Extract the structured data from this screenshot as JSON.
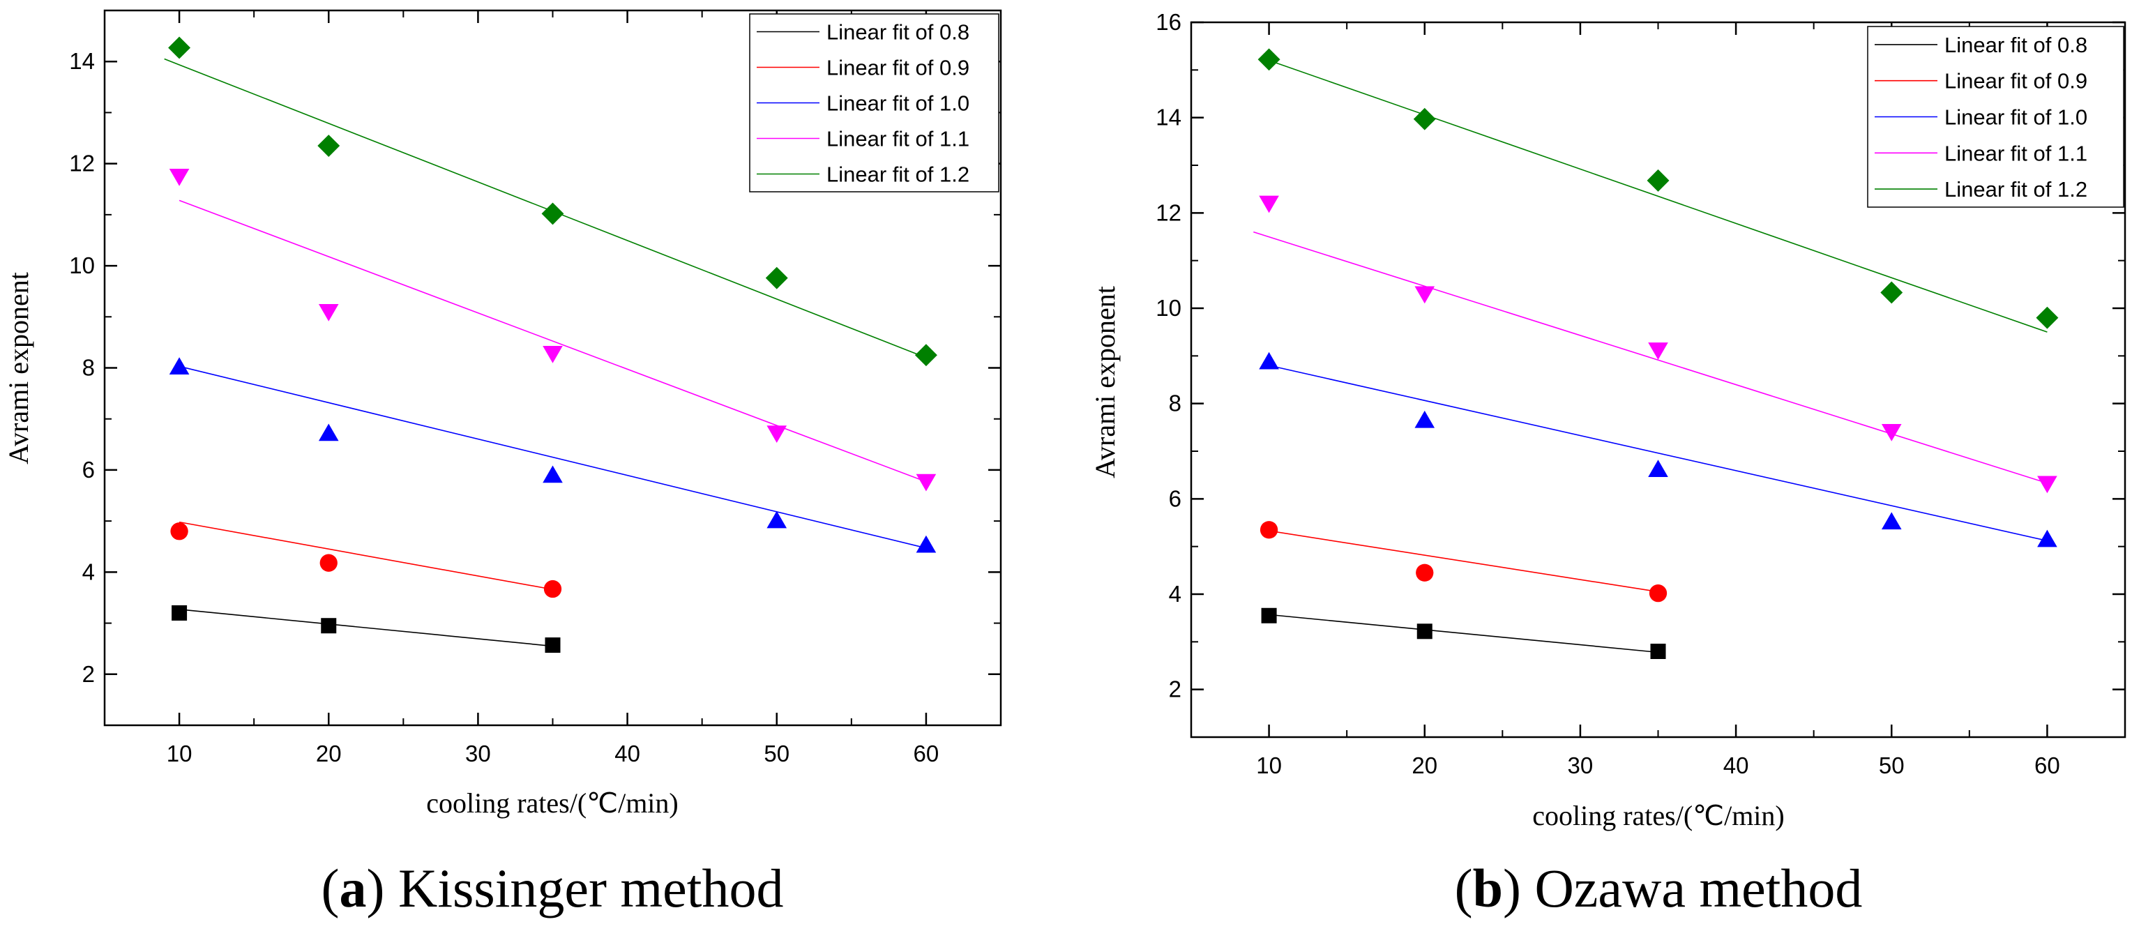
{
  "colors": {
    "0.8": "#000000",
    "0.9": "#ff0000",
    "1.0": "#0000ff",
    "1.1": "#ff00ff",
    "1.2": "#008000"
  },
  "chart_data": [
    {
      "type": "scatter",
      "panel_id": "a",
      "caption_letter": "a",
      "caption_text": " Kissinger method",
      "xlabel": "cooling rates/(℃/min)",
      "ylabel": "Avrami exponent",
      "xlim": [
        5,
        65
      ],
      "ylim": [
        1,
        15
      ],
      "xticks": [
        "10",
        "20",
        "30",
        "40",
        "50",
        "60"
      ],
      "yticks": [
        "2",
        "4",
        "6",
        "8",
        "10",
        "12",
        "14"
      ],
      "xtick_values": [
        10,
        20,
        30,
        40,
        50,
        60
      ],
      "ytick_values": [
        2,
        4,
        6,
        8,
        10,
        12,
        14
      ],
      "legend_position": "top-right",
      "series": [
        {
          "name": "0.8",
          "label": "Linear fit of 0.8",
          "marker": "square",
          "x": [
            10,
            20,
            35
          ],
          "y": [
            3.2,
            2.95,
            2.57
          ],
          "fit": {
            "x": [
              10,
              35
            ],
            "y": [
              3.27,
              2.55
            ]
          }
        },
        {
          "name": "0.9",
          "label": "Linear fit of 0.9",
          "marker": "circle",
          "x": [
            10,
            20,
            35
          ],
          "y": [
            4.8,
            4.18,
            3.67
          ],
          "fit": {
            "x": [
              10,
              35
            ],
            "y": [
              4.98,
              3.66
            ]
          }
        },
        {
          "name": "1.0",
          "label": "Linear fit of 1.0",
          "marker": "triangle-up",
          "x": [
            10,
            20,
            35,
            50,
            60
          ],
          "y": [
            8.02,
            6.72,
            5.9,
            5.01,
            4.53
          ],
          "fit": {
            "x": [
              10,
              60
            ],
            "y": [
              8.03,
              4.47
            ]
          }
        },
        {
          "name": "1.1",
          "label": "Linear fit of 1.1",
          "marker": "triangle-down",
          "x": [
            10,
            20,
            35,
            50,
            60
          ],
          "y": [
            11.75,
            9.1,
            8.28,
            6.72,
            5.77
          ],
          "fit": {
            "x": [
              10,
              60
            ],
            "y": [
              11.28,
              5.77
            ]
          }
        },
        {
          "name": "1.2",
          "label": "Linear fit of 1.2",
          "marker": "diamond",
          "x": [
            10,
            20,
            35,
            50,
            60
          ],
          "y": [
            14.27,
            12.35,
            11.02,
            9.76,
            8.25
          ],
          "fit": {
            "x": [
              9,
              60
            ],
            "y": [
              14.05,
              8.2
            ]
          }
        }
      ]
    },
    {
      "type": "scatter",
      "panel_id": "b",
      "caption_letter": "b",
      "caption_text": " Ozawa method",
      "xlabel": "cooling rates/(℃/min)",
      "ylabel": "Avrami exponent",
      "xlim": [
        5,
        65
      ],
      "ylim": [
        1,
        16
      ],
      "xticks": [
        "10",
        "20",
        "30",
        "40",
        "50",
        "60"
      ],
      "yticks": [
        "2",
        "4",
        "6",
        "8",
        "10",
        "12",
        "14",
        "16"
      ],
      "xtick_values": [
        10,
        20,
        30,
        40,
        50,
        60
      ],
      "ytick_values": [
        2,
        4,
        6,
        8,
        10,
        12,
        14,
        16
      ],
      "legend_position": "top-right",
      "series": [
        {
          "name": "0.8",
          "label": "Linear fit of 0.8",
          "marker": "square",
          "x": [
            10,
            20,
            35
          ],
          "y": [
            3.55,
            3.22,
            2.8
          ],
          "fit": {
            "x": [
              10,
              35
            ],
            "y": [
              3.57,
              2.78
            ]
          }
        },
        {
          "name": "0.9",
          "label": "Linear fit of 0.9",
          "marker": "circle",
          "x": [
            10,
            20,
            35
          ],
          "y": [
            5.35,
            4.45,
            4.02
          ],
          "fit": {
            "x": [
              10,
              35
            ],
            "y": [
              5.33,
              4.05
            ]
          }
        },
        {
          "name": "1.0",
          "label": "Linear fit of 1.0",
          "marker": "triangle-up",
          "x": [
            10,
            20,
            35,
            50,
            60
          ],
          "y": [
            8.88,
            7.65,
            6.62,
            5.52,
            5.15
          ],
          "fit": {
            "x": [
              10,
              60
            ],
            "y": [
              8.8,
              5.12
            ]
          }
        },
        {
          "name": "1.1",
          "label": "Linear fit of 1.1",
          "marker": "triangle-down",
          "x": [
            10,
            20,
            35,
            50,
            60
          ],
          "y": [
            12.2,
            10.3,
            9.12,
            7.41,
            6.32
          ],
          "fit": {
            "x": [
              9,
              60
            ],
            "y": [
              11.6,
              6.33
            ]
          }
        },
        {
          "name": "1.2",
          "label": "Linear fit of 1.2",
          "marker": "diamond",
          "x": [
            10,
            20,
            35,
            50,
            60
          ],
          "y": [
            15.22,
            13.97,
            12.68,
            10.33,
            9.8
          ],
          "fit": {
            "x": [
              10,
              60
            ],
            "y": [
              15.2,
              9.5
            ]
          }
        }
      ]
    }
  ]
}
